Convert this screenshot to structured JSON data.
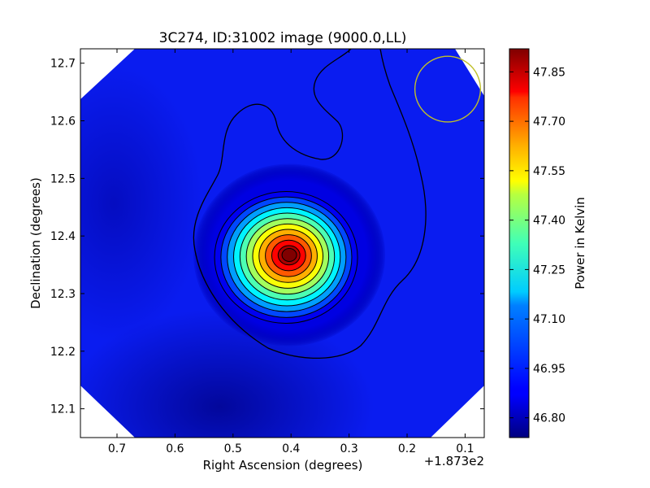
{
  "chart_data": {
    "type": "heatmap",
    "title": "3C274, ID:31002 image (9000.0,LL)",
    "xlabel": "Right Ascension (degrees)",
    "ylabel": "Declination (degrees)",
    "x_offset_label": "+1.873e2",
    "xlim": [
      0.763,
      0.067
    ],
    "ylim": [
      12.05,
      12.725
    ],
    "x_ticks": [
      0.7,
      0.6,
      0.5,
      0.4,
      0.3,
      0.2,
      0.1
    ],
    "x_tick_labels": [
      "0.7",
      "0.6",
      "0.5",
      "0.4",
      "0.3",
      "0.2",
      "0.1"
    ],
    "y_ticks": [
      12.1,
      12.2,
      12.3,
      12.4,
      12.5,
      12.6,
      12.7
    ],
    "y_tick_labels": [
      "12.1",
      "12.2",
      "12.3",
      "12.4",
      "12.5",
      "12.6",
      "12.7"
    ],
    "source_peak": {
      "x": 0.403,
      "y": 12.367
    },
    "background_level": 46.8,
    "peak_level": 47.92,
    "contour_levels": [
      46.87,
      46.97,
      47.07,
      47.17,
      47.27,
      47.37,
      47.47,
      47.57,
      47.67,
      47.77,
      47.87
    ],
    "beam_circle": {
      "x": 0.13,
      "y": 12.655,
      "radius_deg": 0.057,
      "color": "#bfbf2a"
    },
    "colormap": "jet",
    "colorbar": {
      "label": "Power in Kelvin",
      "min": 46.74,
      "max": 47.92,
      "ticks": [
        46.8,
        46.95,
        47.1,
        47.25,
        47.4,
        47.55,
        47.7,
        47.85
      ],
      "tick_labels": [
        "46.80",
        "46.95",
        "47.10",
        "47.25",
        "47.40",
        "47.55",
        "47.70",
        "47.85"
      ]
    },
    "grid": false
  }
}
